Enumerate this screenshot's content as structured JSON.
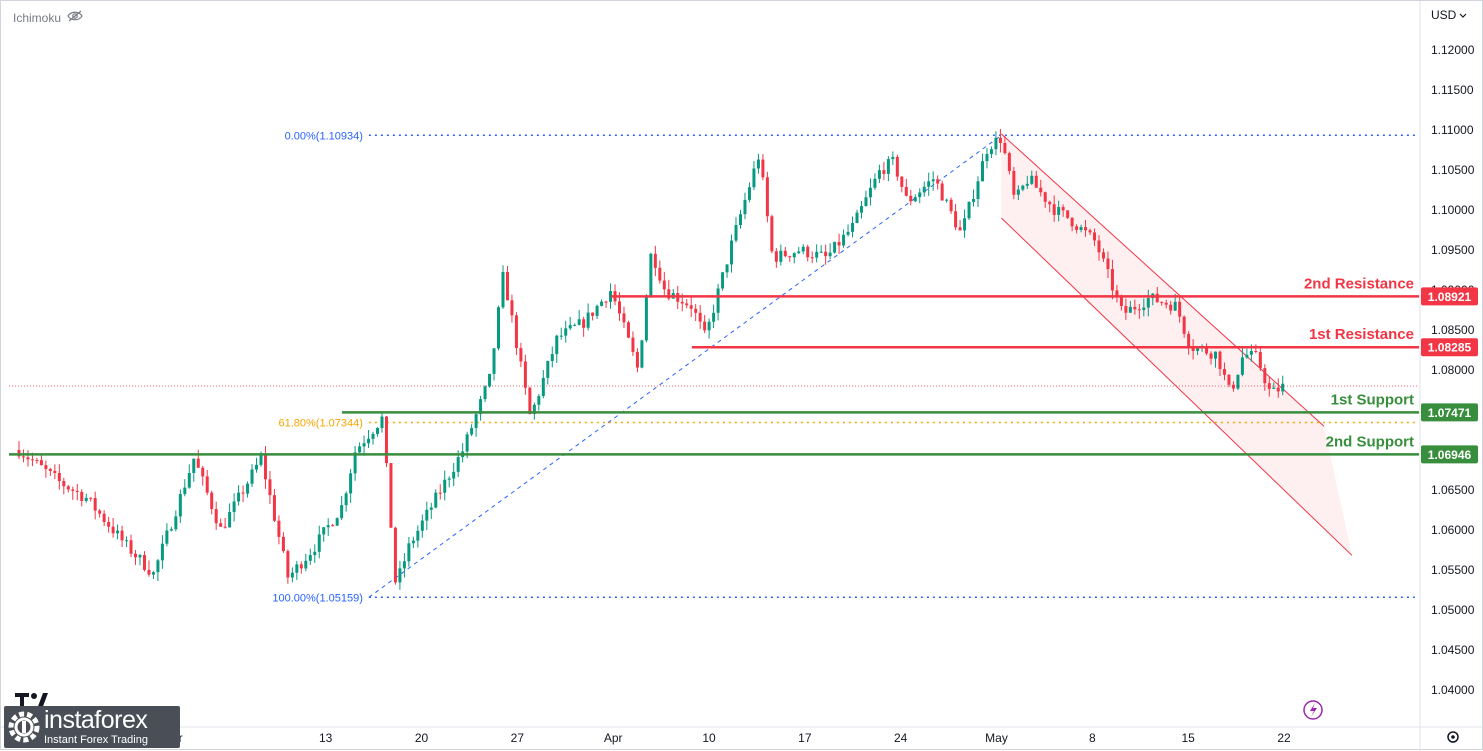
{
  "indicator": {
    "name": "Ichimoku",
    "icon": "eye-crossed-icon"
  },
  "currency": {
    "label": "USD"
  },
  "watermark": {
    "brand": "instaforex",
    "tagline": "Instant Forex Trading"
  },
  "chart_data": {
    "type": "candlestick",
    "symbol_quote": "USD",
    "ylim": [
      1.0355,
      1.1255
    ],
    "y_ticks": [
      "1.12000",
      "1.11500",
      "1.11000",
      "1.10500",
      "1.10000",
      "1.09500",
      "1.09000",
      "1.08500",
      "1.08000",
      "1.07500",
      "1.07000",
      "1.06500",
      "1.06000",
      "1.05500",
      "1.05000",
      "1.04500",
      "1.04000"
    ],
    "x_ticks": [
      "20",
      "Mar",
      "13",
      "20",
      "27",
      "Apr",
      "10",
      "17",
      "24",
      "May",
      "8",
      "15",
      "22"
    ],
    "trading_days": 67,
    "x_tick_days": [
      0,
      8,
      16,
      21,
      26,
      31,
      36,
      41,
      46,
      51,
      56,
      61,
      66
    ],
    "close_path": [
      [
        0,
        1.07
      ],
      [
        3,
        1.066
      ],
      [
        5,
        1.064
      ],
      [
        8,
        1.058
      ],
      [
        10,
        1.0545
      ],
      [
        13,
        1.069
      ],
      [
        15,
        1.06
      ],
      [
        18,
        1.069
      ],
      [
        20,
        1.054
      ],
      [
        22,
        1.058
      ],
      [
        24,
        1.063
      ],
      [
        25,
        1.07
      ],
      [
        27,
        1.074
      ],
      [
        28,
        1.053
      ],
      [
        29,
        1.058
      ],
      [
        31,
        1.064
      ],
      [
        33,
        1.07
      ],
      [
        35,
        1.079
      ],
      [
        36,
        1.092
      ],
      [
        38,
        1.074
      ],
      [
        40,
        1.084
      ],
      [
        42,
        1.086
      ],
      [
        44,
        1.09
      ],
      [
        46,
        1.08
      ],
      [
        47,
        1.095
      ],
      [
        48,
        1.09
      ],
      [
        50,
        1.088
      ],
      [
        51,
        1.084
      ],
      [
        53,
        1.096
      ],
      [
        55,
        1.107
      ],
      [
        56,
        1.094
      ],
      [
        58,
        1.095
      ],
      [
        60,
        1.094
      ],
      [
        62,
        1.098
      ],
      [
        64,
        1.105
      ],
      [
        65,
        1.106
      ],
      [
        66,
        1.101
      ],
      [
        68,
        1.104
      ],
      [
        70,
        1.097
      ],
      [
        72,
        1.108
      ],
      [
        73,
        1.109
      ],
      [
        74,
        1.101
      ],
      [
        75,
        1.104
      ],
      [
        77,
        1.1
      ],
      [
        78,
        1.099
      ],
      [
        80,
        1.096
      ],
      [
        82,
        1.087
      ],
      [
        84,
        1.089
      ],
      [
        86,
        1.088
      ],
      [
        87,
        1.083
      ],
      [
        89,
        1.082
      ],
      [
        90,
        1.077
      ],
      [
        91,
        1.082
      ],
      [
        92,
        1.0815
      ],
      [
        93,
        1.077
      ],
      [
        94,
        1.078
      ]
    ],
    "fib_levels": [
      {
        "label": "0.00%(1.10934)",
        "value": 1.10934,
        "color": "#2962ff"
      },
      {
        "label": "61.80%(1.07344)",
        "value": 1.07344,
        "color": "#f7a600"
      },
      {
        "label": "100.00%(1.05159)",
        "value": 1.05159,
        "color": "#2962ff"
      }
    ],
    "levels": [
      {
        "name": "2nd Resistance",
        "value": 1.08921,
        "tag": "1.08921",
        "color": "#f23645",
        "start_day": 44
      },
      {
        "name": "1st Resistance",
        "value": 1.08285,
        "tag": "1.08285",
        "color": "#f23645",
        "start_day": 50
      },
      {
        "name": "1st Support",
        "value": 1.07471,
        "tag": "1.07471",
        "color": "#388e3c",
        "start_day": 24
      },
      {
        "name": "2nd Support",
        "value": 1.06946,
        "tag": "1.06946",
        "color": "#388e3c",
        "start_day": 0
      }
    ],
    "current_price": 1.078,
    "channel": {
      "upper": [
        [
          73,
          1.1095
        ],
        [
          94,
          1.0775
        ]
      ],
      "lower": [
        [
          73,
          1.099
        ],
        [
          94,
          1.065
        ]
      ],
      "color": "#f23645"
    },
    "trend_line": [
      [
        26,
        1.05159
      ],
      [
        73,
        1.10934
      ]
    ],
    "colors": {
      "up": "#089981",
      "down": "#f23645"
    }
  }
}
